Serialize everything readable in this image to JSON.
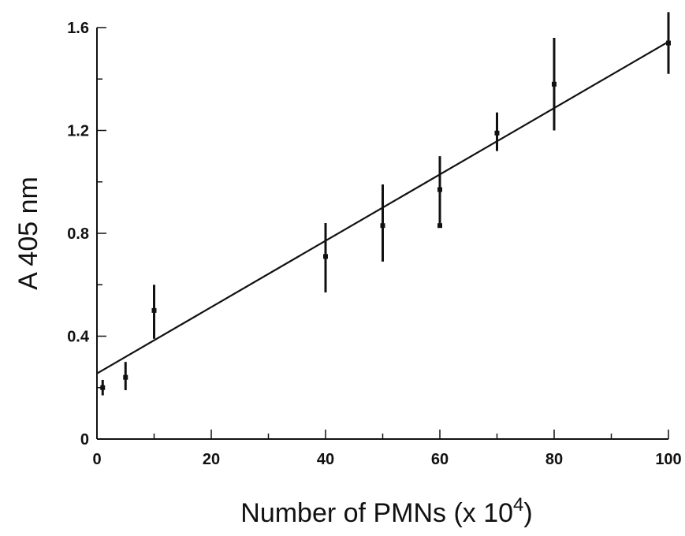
{
  "chart_data": {
    "type": "scatter",
    "title": "",
    "xlabel": "Number of PMNs (x 10",
    "xlabel_superscript": "4",
    "xlabel_suffix": ")",
    "ylabel": "A 405 nm",
    "xlim": [
      0,
      100
    ],
    "ylim": [
      0,
      1.6
    ],
    "x_ticks_labeled": [
      "0",
      "20",
      "40",
      "60",
      "80",
      "100"
    ],
    "x_tick_values": [
      0,
      20,
      40,
      60,
      80,
      100
    ],
    "x_minor_tick_values": [
      10,
      30,
      50,
      70,
      90
    ],
    "y_ticks_labeled": [
      "0",
      "0.4",
      "0.8",
      "1.2",
      "1.6"
    ],
    "y_tick_values": [
      0,
      0.4,
      0.8,
      1.2,
      1.6
    ],
    "y_minor_tick_values": [
      0.2,
      0.6,
      1.0,
      1.4
    ],
    "grid": false,
    "points": [
      {
        "x": 1,
        "y": 0.2,
        "err_low": 0.17,
        "err_high": 0.23
      },
      {
        "x": 5,
        "y": 0.24,
        "err_low": 0.19,
        "err_high": 0.3
      },
      {
        "x": 10,
        "y": 0.5,
        "err_low": 0.39,
        "err_high": 0.6
      },
      {
        "x": 40,
        "y": 0.71,
        "err_low": 0.57,
        "err_high": 0.84
      },
      {
        "x": 50,
        "y": 0.83,
        "err_low": 0.69,
        "err_high": 0.99
      },
      {
        "x": 60,
        "y": 0.97,
        "err_low": 0.83,
        "err_high": 1.1
      },
      {
        "x": 60,
        "y": 0.83,
        "err_low": 0.83,
        "err_high": 0.83
      },
      {
        "x": 70,
        "y": 1.19,
        "err_low": 1.12,
        "err_high": 1.27
      },
      {
        "x": 80,
        "y": 1.38,
        "err_low": 1.2,
        "err_high": 1.56
      },
      {
        "x": 100,
        "y": 1.54,
        "err_low": 1.42,
        "err_high": 1.66
      }
    ],
    "fit_line": {
      "x": [
        0,
        100
      ],
      "y": [
        0.255,
        1.545
      ]
    }
  }
}
